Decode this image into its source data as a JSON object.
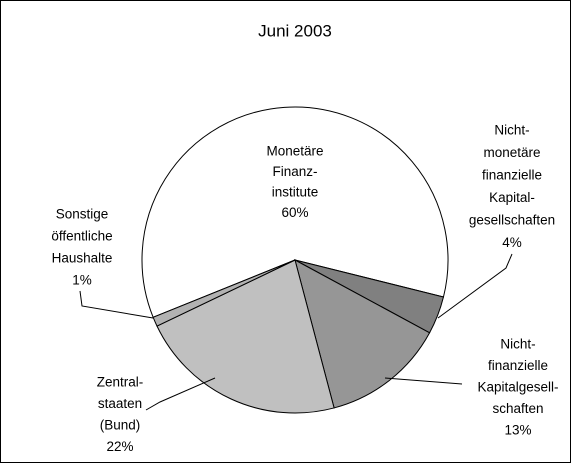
{
  "chart_data": {
    "type": "pie",
    "title": "Juni 2003",
    "categories": [
      [
        "Monetäre",
        "Finanz-",
        "institute"
      ],
      [
        "Nicht-",
        "monetäre",
        "finanzielle",
        "Kapital-",
        "gesellschaften"
      ],
      [
        "Nicht-",
        "finanzielle",
        "Kapitalgesell-",
        "schaften"
      ],
      [
        "Zentral-",
        "staaten",
        "(Bund)"
      ],
      [
        "Sonstige",
        "öffentliche",
        "Haushalte"
      ]
    ],
    "values": [
      60,
      4,
      13,
      22,
      1
    ],
    "value_labels": [
      "60%",
      "4%",
      "13%",
      "22%",
      "1%"
    ],
    "colors": [
      "#ffffff",
      "#808080",
      "#969696",
      "#c0c0c0",
      "#b2b2b2"
    ]
  }
}
